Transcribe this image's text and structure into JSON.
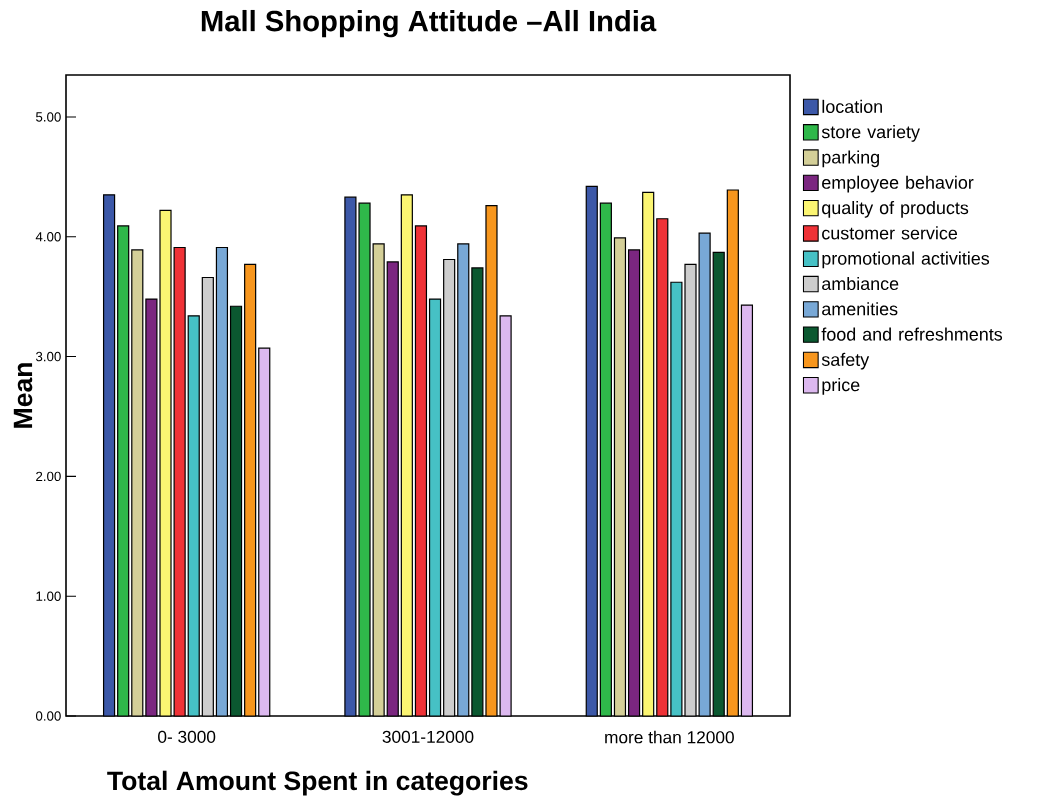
{
  "chart_data": {
    "type": "bar",
    "title": "Mall Shopping Attitude –All India",
    "xlabel": "Total Amount Spent in categories",
    "ylabel": "Mean",
    "categories": [
      "0- 3000",
      "3001-12000",
      "more than 12000"
    ],
    "ylim": [
      0,
      5.35
    ],
    "yticks": [
      {
        "value": 0,
        "label": "0.00"
      },
      {
        "value": 1,
        "label": "1.00"
      },
      {
        "value": 2,
        "label": "2.00"
      },
      {
        "value": 3,
        "label": "3.00"
      },
      {
        "value": 4,
        "label": "4.00"
      },
      {
        "value": 5,
        "label": "5.00"
      }
    ],
    "grid": false,
    "legend": "right",
    "series": [
      {
        "name": "location",
        "color": "#3c58a8",
        "values": [
          4.35,
          4.33,
          4.42
        ]
      },
      {
        "name": "store variety",
        "color": "#2fb84a",
        "values": [
          4.09,
          4.28,
          4.28
        ]
      },
      {
        "name": "parking",
        "color": "#d4cf98",
        "values": [
          3.89,
          3.94,
          3.99
        ]
      },
      {
        "name": "employee behavior",
        "color": "#7b2680",
        "values": [
          3.48,
          3.79,
          3.89
        ]
      },
      {
        "name": "quality of products",
        "color": "#fbf572",
        "values": [
          4.22,
          4.35,
          4.37
        ]
      },
      {
        "name": "customer service",
        "color": "#ef3237",
        "values": [
          3.91,
          4.09,
          4.15
        ]
      },
      {
        "name": "promotional activities",
        "color": "#46c1c5",
        "values": [
          3.34,
          3.48,
          3.62
        ]
      },
      {
        "name": "ambiance",
        "color": "#cdcdcd",
        "values": [
          3.66,
          3.81,
          3.77
        ]
      },
      {
        "name": "amenities",
        "color": "#78a8d6",
        "values": [
          3.91,
          3.94,
          4.03
        ]
      },
      {
        "name": "food and refreshments",
        "color": "#0b5830",
        "values": [
          3.42,
          3.74,
          3.87
        ]
      },
      {
        "name": "safety",
        "color": "#f7961d",
        "values": [
          3.77,
          4.26,
          4.39
        ]
      },
      {
        "name": "price",
        "color": "#dcb8ef",
        "values": [
          3.07,
          3.34,
          3.43
        ]
      }
    ]
  }
}
